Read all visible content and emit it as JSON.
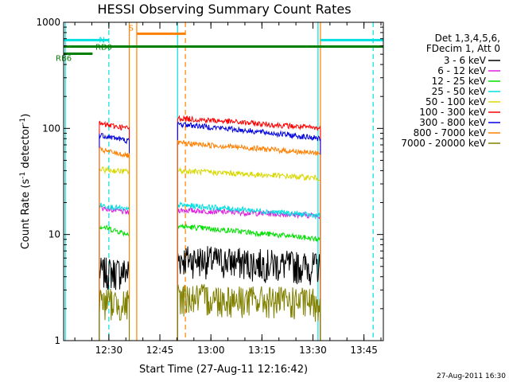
{
  "chart_data": {
    "type": "line",
    "title": "HESSI Observing Summary Count Rates",
    "xlabel": "Start Time (27-Aug-11 12:16:42)",
    "ylabel": "Count Rate (s",
    "ylabel_sup1": "-1",
    "ylabel_mid": " detector",
    "ylabel_sup2": "-1",
    "ylabel_end": ")",
    "y_scale": "log",
    "ylim": [
      1,
      1000
    ],
    "xlim_minutes": [
      0,
      94
    ],
    "x_ticks": [
      {
        "label": "12:30",
        "minute": 13.3
      },
      {
        "label": "12:45",
        "minute": 28.3
      },
      {
        "label": "13:00",
        "minute": 43.3
      },
      {
        "label": "13:15",
        "minute": 58.3
      },
      {
        "label": "13:30",
        "minute": 73.3
      },
      {
        "label": "13:45",
        "minute": 88.3
      }
    ],
    "y_ticks": [
      {
        "label": "1",
        "value": 1
      },
      {
        "label": "10",
        "value": 10
      },
      {
        "label": "100",
        "value": 100
      },
      {
        "label": "1000",
        "value": 1000
      }
    ],
    "legend_header": [
      "Det 1,3,4,5,6,",
      "FDecim 1, Att 0"
    ],
    "legend_position": "right",
    "series": [
      {
        "name": "3 - 6 keV",
        "color": "#000000",
        "seg1": [
          4.5,
          4.5
        ],
        "seg2": [
          6.0,
          5.0
        ]
      },
      {
        "name": "6 - 12 keV",
        "color": "#e020e0",
        "seg1": [
          18,
          16
        ],
        "seg2": [
          17,
          15
        ]
      },
      {
        "name": "12 - 25 keV",
        "color": "#00e000",
        "seg1": [
          12,
          10
        ],
        "seg2": [
          12,
          9
        ]
      },
      {
        "name": "25 - 50 keV",
        "color": "#00e0e0",
        "seg1": [
          19,
          17
        ],
        "seg2": [
          19,
          15
        ]
      },
      {
        "name": "50 - 100 keV",
        "color": "#d8d800",
        "seg1": [
          41,
          39
        ],
        "seg2": [
          40,
          34
        ]
      },
      {
        "name": "100 - 300 keV",
        "color": "#ff0000",
        "seg1": [
          110,
          100
        ],
        "seg2": [
          125,
          100
        ]
      },
      {
        "name": "300 - 800 keV",
        "color": "#0000e0",
        "seg1": [
          87,
          76
        ],
        "seg2": [
          110,
          80
        ]
      },
      {
        "name": "800 - 7000 keV",
        "color": "#ff8000",
        "seg1": [
          63,
          55
        ],
        "seg2": [
          73,
          58
        ]
      },
      {
        "name": "7000 - 20000 keV",
        "color": "#808000",
        "seg1": [
          2.4,
          2.2
        ],
        "seg2": [
          2.6,
          2.3
        ]
      }
    ],
    "data_segments": [
      {
        "start": 10.5,
        "end": 19.3
      },
      {
        "start": 33.5,
        "end": 75.5
      }
    ],
    "flags": [
      {
        "label": "N",
        "color": "#00e0e0",
        "y_value": 680,
        "spans": [
          [
            0,
            13.3
          ],
          [
            75.5,
            94
          ]
        ]
      },
      {
        "label": "S",
        "color": "#ff8000",
        "y_value": 780,
        "spans": [
          [
            21.5,
            35.8
          ]
        ]
      },
      {
        "label": "RD0",
        "color": "#008000",
        "y_value": 590,
        "spans": [
          [
            0,
            94
          ]
        ]
      },
      {
        "label": "RB6",
        "color": "#008000",
        "y_value": 505,
        "spans": [
          [
            0,
            8.5
          ]
        ]
      }
    ],
    "vertical_lines": [
      {
        "minute": 0.5,
        "color": "#00e0e0",
        "dashed": false
      },
      {
        "minute": 13.3,
        "color": "#00e0e0",
        "dashed": true
      },
      {
        "minute": 19.3,
        "color": "#ff8000",
        "dashed": false
      },
      {
        "minute": 21.5,
        "color": "#ff8000",
        "dashed": false
      },
      {
        "minute": 35.8,
        "color": "#ff8000",
        "dashed": true
      },
      {
        "minute": 33.5,
        "color": "#00e0e0",
        "dashed": false
      },
      {
        "minute": 75.5,
        "color": "#ff8000",
        "dashed": false
      },
      {
        "minute": 74.8,
        "color": "#00e0e0",
        "dashed": false
      },
      {
        "minute": 91.0,
        "color": "#00e0e0",
        "dashed": true
      }
    ],
    "footer": "27-Aug-2011 16:30"
  }
}
